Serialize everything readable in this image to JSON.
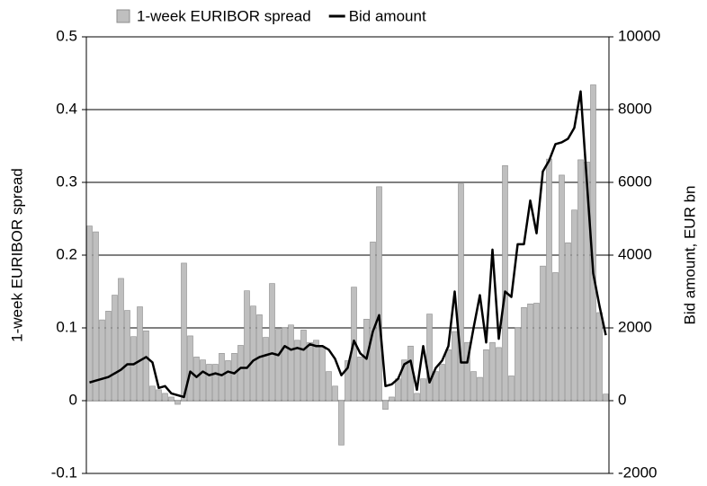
{
  "chart_data": {
    "type": "bar_line",
    "y_label": "1-week EURIBOR spread",
    "y2_label": "Bid amount, EUR bn",
    "categories": [
      null,
      null,
      null,
      null,
      null,
      null,
      null,
      null,
      null,
      null,
      null,
      null,
      null,
      null,
      null,
      null,
      null,
      null,
      null,
      null,
      null,
      null,
      null,
      null,
      null,
      null,
      null,
      null,
      null,
      null,
      null,
      null,
      null,
      null,
      null,
      null,
      null,
      null,
      null,
      null,
      null,
      null,
      null,
      null,
      null,
      null,
      null,
      null,
      null,
      null,
      null,
      null,
      null,
      null,
      null,
      null,
      null,
      null,
      null,
      null,
      null,
      null,
      null,
      null,
      null,
      null,
      null,
      null,
      null,
      null,
      null,
      null,
      null,
      null,
      null,
      null,
      null,
      null,
      null,
      null,
      null,
      null,
      null
    ],
    "series": [
      {
        "name": "1-week EURIBOR spread",
        "type": "bar",
        "color": "#bfbfbf",
        "axis": "y",
        "values": [
          0.24,
          0.232,
          0.111,
          0.123,
          0.145,
          0.168,
          0.124,
          0.088,
          0.129,
          0.096,
          0.02,
          0.015,
          0.01,
          0.005,
          -0.005,
          0.189,
          0.089,
          0.06,
          0.056,
          0.05,
          0.05,
          0.065,
          0.055,
          0.065,
          0.076,
          0.151,
          0.13,
          0.118,
          0.087,
          0.161,
          0.098,
          0.1,
          0.104,
          0.083,
          0.097,
          0.08,
          0.083,
          0.074,
          0.04,
          0.02,
          -0.061,
          0.055,
          0.156,
          0.06,
          0.112,
          0.218,
          0.294,
          -0.012,
          0.005,
          0.03,
          0.056,
          0.075,
          0.01,
          0.03,
          0.119,
          0.04,
          0.05,
          0.07,
          0.095,
          0.298,
          0.08,
          0.04,
          0.032,
          0.07,
          0.08,
          0.073,
          0.323,
          0.034,
          0.1,
          0.128,
          0.133,
          0.134,
          0.185,
          0.332,
          0.176,
          0.31,
          0.217,
          0.262,
          0.331,
          0.328,
          0.434,
          0.121,
          0.009
        ]
      },
      {
        "name": "Bid amount",
        "type": "line",
        "color": "#000000",
        "axis": "y2",
        "values": [
          500,
          550,
          600,
          650,
          750,
          850,
          1000,
          1000,
          1100,
          1200,
          1050,
          350,
          400,
          200,
          150,
          100,
          800,
          650,
          800,
          700,
          750,
          700,
          800,
          750,
          900,
          900,
          1100,
          1200,
          1250,
          1300,
          1250,
          1500,
          1400,
          1450,
          1400,
          1550,
          1500,
          1500,
          1400,
          1150,
          700,
          900,
          1650,
          1300,
          1150,
          1900,
          2350,
          400,
          450,
          600,
          1000,
          1100,
          300,
          1500,
          500,
          900,
          1100,
          1500,
          3000,
          1050,
          1050,
          2000,
          2900,
          1600,
          4150,
          1700,
          3000,
          2850,
          4300,
          4300,
          5500,
          4600,
          6300,
          6600,
          7050,
          7100,
          7200,
          7500,
          8500,
          6000,
          3500,
          2600,
          1800
        ]
      }
    ],
    "ylim": [
      -0.1,
      0.5
    ],
    "yticks": [
      -0.1,
      0,
      0.1,
      0.2,
      0.3,
      0.4,
      0.5
    ],
    "y2lim": [
      -2000,
      10000
    ],
    "y2ticks": [
      -2000,
      0,
      2000,
      4000,
      6000,
      8000,
      10000
    ],
    "grid": true,
    "legend": "top"
  }
}
